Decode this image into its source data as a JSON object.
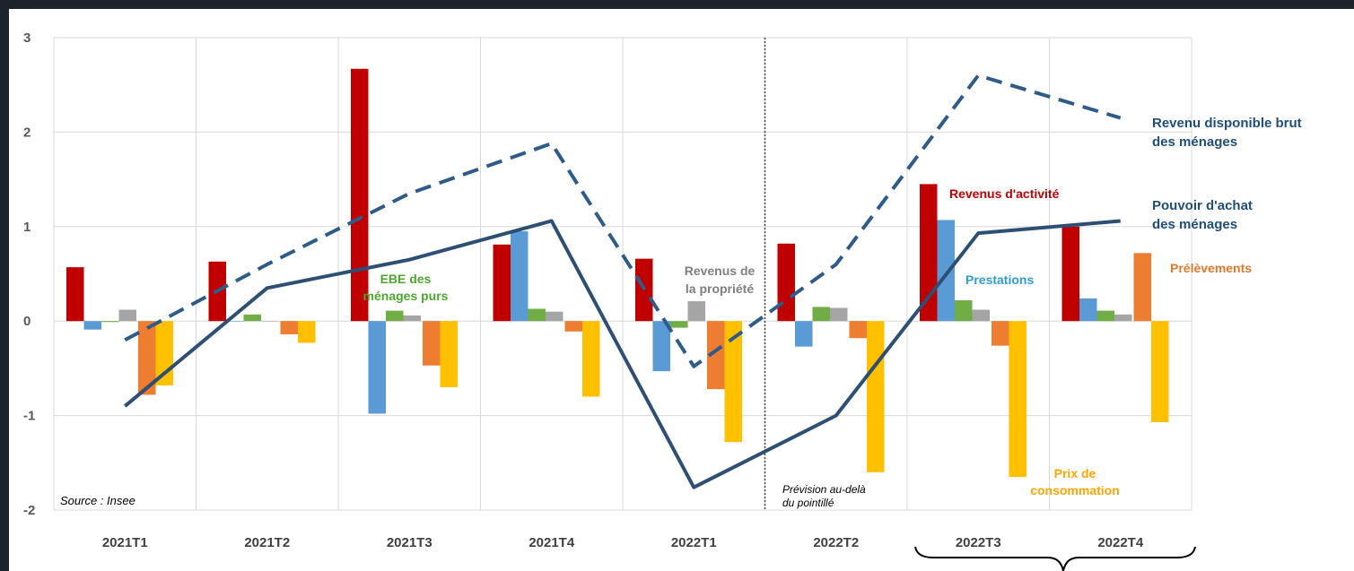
{
  "chart_data": {
    "type": "bar",
    "categories": [
      "2021T1",
      "2021T2",
      "2021T3",
      "2021T4",
      "2022T1",
      "2022T2",
      "2022T3",
      "2022T4"
    ],
    "ylim": [
      -2,
      3
    ],
    "yticks": [
      "3",
      "2",
      "1",
      "0",
      "-1",
      "-2"
    ],
    "grid": true,
    "series": [
      {
        "name": "Revenus d'activité",
        "color": "#c00000",
        "values": [
          0.57,
          0.63,
          2.67,
          0.81,
          0.66,
          0.82,
          1.45,
          1.0
        ]
      },
      {
        "name": "Prestations",
        "color": "#5b9bd5",
        "values": [
          -0.09,
          0.0,
          -0.98,
          0.95,
          -0.53,
          -0.27,
          1.07,
          0.24
        ]
      },
      {
        "name": "EBE des ménages purs",
        "color": "#70ad47",
        "values": [
          -0.01,
          0.07,
          0.11,
          0.13,
          -0.07,
          0.15,
          0.22,
          0.11
        ]
      },
      {
        "name": "Revenus de la propriété",
        "color": "#a5a5a5",
        "values": [
          0.12,
          0.0,
          0.06,
          0.1,
          0.21,
          0.14,
          0.12,
          0.07
        ]
      },
      {
        "name": "Prélèvements",
        "color": "#ed7d31",
        "values": [
          -0.78,
          -0.14,
          -0.47,
          -0.11,
          -0.72,
          -0.18,
          -0.26,
          0.72
        ]
      },
      {
        "name": "Prix de consommation",
        "color": "#ffc000",
        "values": [
          -0.68,
          -0.23,
          -0.7,
          -0.8,
          -1.28,
          -1.6,
          -1.65,
          -1.07
        ]
      }
    ],
    "lines": [
      {
        "name": "Revenu disponible brut des ménages",
        "style": "dashed",
        "color": "#2e5b8a",
        "values": [
          -0.2,
          0.6,
          1.35,
          1.88,
          -0.48,
          0.6,
          2.6,
          2.15
        ]
      },
      {
        "name": "Pouvoir d'achat des ménages",
        "style": "solid",
        "color": "#2e4f74",
        "values": [
          -0.9,
          0.35,
          0.65,
          1.06,
          -1.76,
          -1.0,
          0.93,
          1.06
        ]
      }
    ],
    "forecast_divider_after": "2022T1"
  },
  "labels": {
    "rdb_line1": "Revenu disponible brut",
    "rdb_line2": "des ménages",
    "pa_line1": "Pouvoir d'achat",
    "pa_line2": "des ménages",
    "revenus_activite": "Revenus d'activité",
    "prestations": "Prestations",
    "prelevements": "Prélèvements",
    "ebe_line1": "EBE des",
    "ebe_line2": "ménages purs",
    "propriete_line1": "Revenus de",
    "propriete_line2": "la propriété",
    "prix_line1": "Prix de",
    "prix_line2": "consommation",
    "source": "Source : Insee",
    "prevision_line1": "Prévision au-delà",
    "prevision_line2": "du pointillé"
  }
}
